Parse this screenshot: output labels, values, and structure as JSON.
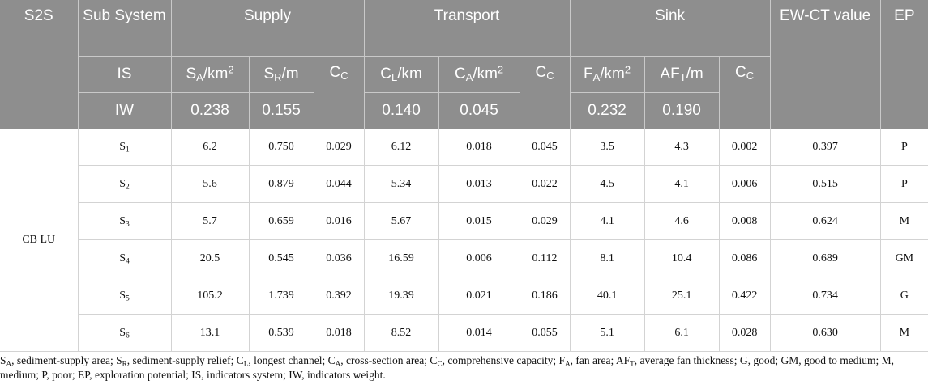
{
  "header": {
    "s2s": "S2S",
    "sub_system": "Sub System",
    "supply": "Supply",
    "transport": "Transport",
    "sink": "Sink",
    "ewct_value": "EW-CT value",
    "ep": "EP",
    "is_label": "IS",
    "iw_label": "IW",
    "cc": "C",
    "cc_sub": "C",
    "indicators": [
      {
        "base": "S",
        "sub": "A",
        "unit": "/km",
        "sup": "2"
      },
      {
        "base": "S",
        "sub": "R",
        "unit": "/m",
        "sup": ""
      },
      {
        "base": "C",
        "sub": "L",
        "unit": "/km",
        "sup": ""
      },
      {
        "base": "C",
        "sub": "A",
        "unit": "/km",
        "sup": "2"
      },
      {
        "base": "F",
        "sub": "A",
        "unit": "/km",
        "sup": "2"
      },
      {
        "base": "AF",
        "sub": "T",
        "unit": "/m",
        "sup": ""
      }
    ],
    "weights": [
      "0.238",
      "0.155",
      "0.140",
      "0.045",
      "0.232",
      "0.190"
    ]
  },
  "group_label": "CB LU",
  "rows": [
    {
      "s": "S",
      "sub": "1",
      "sa": "6.2",
      "sr": "0.750",
      "cc1": "0.029",
      "cl": "6.12",
      "ca": "0.018",
      "cc2": "0.045",
      "fa": "3.5",
      "aft": "4.3",
      "cc3": "0.002",
      "ewct": "0.397",
      "ep": "P"
    },
    {
      "s": "S",
      "sub": "2",
      "sa": "5.6",
      "sr": "0.879",
      "cc1": "0.044",
      "cl": "5.34",
      "ca": "0.013",
      "cc2": "0.022",
      "fa": "4.5",
      "aft": "4.1",
      "cc3": "0.006",
      "ewct": "0.515",
      "ep": "P"
    },
    {
      "s": "S",
      "sub": "3",
      "sa": "5.7",
      "sr": "0.659",
      "cc1": "0.016",
      "cl": "5.67",
      "ca": "0.015",
      "cc2": "0.029",
      "fa": "4.1",
      "aft": "4.6",
      "cc3": "0.008",
      "ewct": "0.624",
      "ep": "M"
    },
    {
      "s": "S",
      "sub": "4",
      "sa": "20.5",
      "sr": "0.545",
      "cc1": "0.036",
      "cl": "16.59",
      "ca": "0.006",
      "cc2": "0.112",
      "fa": "8.1",
      "aft": "10.4",
      "cc3": "0.086",
      "ewct": "0.689",
      "ep": "GM"
    },
    {
      "s": "S",
      "sub": "5",
      "sa": "105.2",
      "sr": "1.739",
      "cc1": "0.392",
      "cl": "19.39",
      "ca": "0.021",
      "cc2": "0.186",
      "fa": "40.1",
      "aft": "25.1",
      "cc3": "0.422",
      "ewct": "0.734",
      "ep": "G"
    },
    {
      "s": "S",
      "sub": "6",
      "sa": "13.1",
      "sr": "0.539",
      "cc1": "0.018",
      "cl": "8.52",
      "ca": "0.014",
      "cc2": "0.055",
      "fa": "5.1",
      "aft": "6.1",
      "cc3": "0.028",
      "ewct": "0.630",
      "ep": "M"
    }
  ],
  "footnote": [
    {
      "sym": "S",
      "sub": "A",
      "text": ", sediment-supply area; "
    },
    {
      "sym": "S",
      "sub": "R",
      "text": ", sediment-supply relief; "
    },
    {
      "sym": "C",
      "sub": "L",
      "text": ", longest channel; "
    },
    {
      "sym": "C",
      "sub": "A",
      "text": ", cross-section area; "
    },
    {
      "sym": "C",
      "sub": "C",
      "text": ", comprehensive capacity; "
    },
    {
      "sym": "F",
      "sub": "A",
      "text": ", fan area; "
    },
    {
      "sym": "AF",
      "sub": "T",
      "text": ", average fan thickness; G, good; GM, good to medium; M, medium; P, poor; EP, exploration potential; IS, indicators system; IW, indicators weight."
    }
  ]
}
